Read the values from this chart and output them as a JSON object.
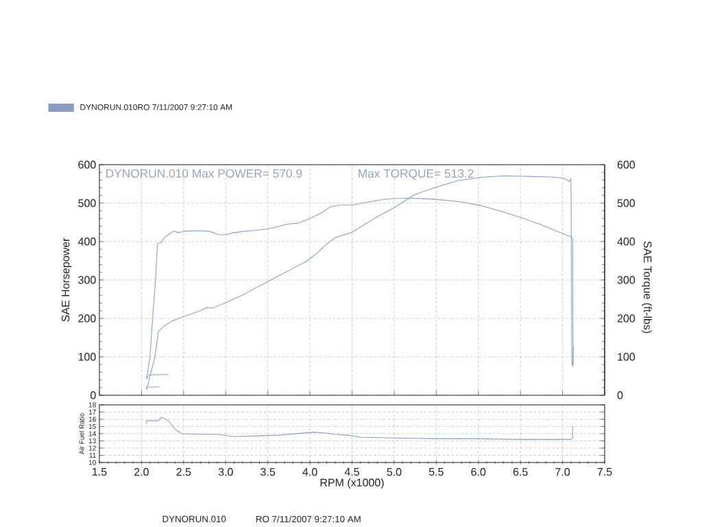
{
  "chart_data": [
    {
      "type": "line",
      "ylabel": "SAE Horsepower",
      "y2label": "SAE Torque (ft-lbs)",
      "annotations": [
        "DYNORUN.010  Max POWER= 570.9",
        "Max TORQUE= 513.2"
      ],
      "xlim": [
        1.5,
        7.5
      ],
      "xticks": [
        1.5,
        2,
        2.5,
        3,
        3.5,
        4,
        4.5,
        5,
        5.5,
        6,
        6.5,
        7,
        7.5
      ],
      "ylim": [
        0,
        600
      ],
      "yticks": [
        0,
        100,
        200,
        300,
        400,
        500,
        600
      ],
      "y2lim": [
        0,
        600
      ],
      "y2ticks": [
        0,
        100,
        200,
        300,
        400,
        500,
        600
      ],
      "tick_labels": "y",
      "grid": true,
      "legend": "top left",
      "series": [
        {
          "name": "DYNORUN.010RO  7/11/2007 9:27:10 AM",
          "color": "#8a9ec4",
          "x": [
            2.21,
            2.06,
            2.06,
            2.16,
            2.2,
            2.27,
            2.36,
            2.49,
            2.7,
            2.77,
            2.85,
            3.02,
            3.23,
            3.5,
            3.77,
            3.97,
            4.1,
            4.18,
            4.3,
            4.5,
            4.77,
            5.0,
            5.24,
            5.48,
            5.75,
            6.02,
            6.3,
            6.5,
            6.87,
            7.0,
            7.05,
            7.08,
            7.1,
            7.11,
            7.12,
            7.13
          ],
          "values": [
            22,
            21,
            15,
            100,
            166,
            180,
            193,
            204,
            220,
            228,
            227,
            243,
            264,
            296,
            327,
            350,
            373,
            390,
            410,
            424,
            461,
            488,
            522,
            540,
            558,
            567,
            571,
            570,
            568,
            565,
            561,
            556,
            564,
            85,
            75,
            125
          ]
        },
        {
          "color": "#8a9ec4",
          "axis": "y2",
          "x": [
            2.32,
            2.09,
            2.06,
            2.1,
            2.17,
            2.19,
            2.23,
            2.28,
            2.38,
            2.45,
            2.5,
            2.65,
            2.8,
            2.92,
            3.0,
            3.1,
            3.23,
            3.35,
            3.5,
            3.62,
            3.73,
            3.86,
            3.97,
            4.14,
            4.24,
            4.37,
            4.5,
            4.63,
            4.85,
            5.0,
            5.2,
            5.48,
            5.8,
            6.02,
            6.28,
            6.5,
            6.73,
            6.92,
            7.06,
            7.1,
            7.12,
            7.125,
            7.13
          ],
          "values": [
            54,
            53,
            43,
            100,
            314,
            395,
            397,
            412,
            427,
            423,
            427,
            428,
            427,
            418,
            418,
            423,
            427,
            429,
            433,
            439,
            445,
            448,
            457,
            475,
            490,
            495,
            495,
            500,
            509,
            512,
            513,
            510,
            503,
            494,
            478,
            463,
            445,
            428,
            415,
            413,
            405,
            90,
            82
          ]
        }
      ]
    },
    {
      "type": "line",
      "xlabel": "RPM (x1000)",
      "ylabel": "Air Fuel Ratio",
      "annotations": [
        "DYNORUN.010",
        "RO  7/11/2007 9:27:10 AM"
      ],
      "xlim": [
        1.5,
        7.5
      ],
      "xticks": [
        1.5,
        {
          "value": 2,
          "label": "2.0"
        },
        2.5,
        {
          "value": 3,
          "label": "3.0"
        },
        3.5,
        {
          "value": 4,
          "label": "4.0"
        },
        4.5,
        {
          "value": 5,
          "label": "5.0"
        },
        5.5,
        {
          "value": 6,
          "label": "6.0"
        },
        6.5,
        {
          "value": 7,
          "label": "7.0"
        },
        7.5
      ],
      "ylim": [
        10,
        18
      ],
      "yticks": [
        10,
        11,
        12,
        13,
        14,
        15,
        16,
        17,
        18
      ],
      "grid": true,
      "series": [
        {
          "color": "#8a9ec4",
          "x": [
            2.06,
            2.06,
            2.2,
            2.24,
            2.32,
            2.4,
            2.48,
            2.7,
            2.9,
            3.1,
            3.4,
            3.64,
            4.04,
            4.18,
            4.3,
            4.44,
            4.6,
            5.0,
            5.5,
            6.0,
            6.5,
            7.0,
            7.1,
            7.12,
            7.12
          ],
          "values": [
            15.4,
            15.8,
            15.8,
            16.3,
            15.8,
            14.6,
            14.0,
            13.9,
            13.9,
            13.6,
            13.7,
            13.8,
            14.2,
            14.1,
            13.9,
            13.8,
            13.5,
            13.4,
            13.3,
            13.3,
            13.2,
            13.2,
            13.2,
            13.4,
            15.0
          ]
        }
      ]
    }
  ]
}
